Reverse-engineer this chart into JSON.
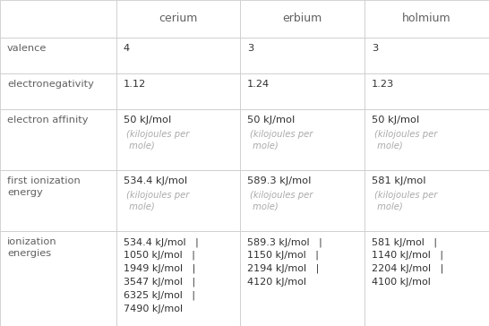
{
  "columns": [
    "",
    "cerium",
    "erbium",
    "holmium"
  ],
  "rows": [
    {
      "label": "valence",
      "cerium": [
        "4",
        ""
      ],
      "erbium": [
        "3",
        ""
      ],
      "holmium": [
        "3",
        ""
      ]
    },
    {
      "label": "electronegativity",
      "cerium": [
        "1.12",
        ""
      ],
      "erbium": [
        "1.24",
        ""
      ],
      "holmium": [
        "1.23",
        ""
      ]
    },
    {
      "label": "electron affinity",
      "cerium": [
        "50 kJ/mol",
        "(kilojoules per\n mole)"
      ],
      "erbium": [
        "50 kJ/mol",
        "(kilojoules per\n mole)"
      ],
      "holmium": [
        "50 kJ/mol",
        "(kilojoules per\n mole)"
      ]
    },
    {
      "label": "first ionization\nenergy",
      "cerium": [
        "534.4 kJ/mol",
        "(kilojoules per\n mole)"
      ],
      "erbium": [
        "589.3 kJ/mol",
        "(kilojoules per\n mole)"
      ],
      "holmium": [
        "581 kJ/mol",
        "(kilojoules per\n mole)"
      ]
    },
    {
      "label": "ionization\nenergies",
      "cerium": [
        "534.4 kJ/mol   |\n1050 kJ/mol   |\n1949 kJ/mol   |\n3547 kJ/mol   |\n6325 kJ/mol   |\n7490 kJ/mol",
        ""
      ],
      "erbium": [
        "589.3 kJ/mol   |\n1150 kJ/mol   |\n2194 kJ/mol   |\n4120 kJ/mol",
        ""
      ],
      "holmium": [
        "581 kJ/mol   |\n1140 kJ/mol   |\n2204 kJ/mol   |\n4100 kJ/mol",
        ""
      ]
    }
  ],
  "header_text_color": "#606060",
  "row_label_color": "#606060",
  "main_value_color": "#303030",
  "sub_value_color": "#aaaaaa",
  "grid_color": "#cccccc",
  "bg_color": "#ffffff",
  "fig_width": 5.46,
  "fig_height": 3.64,
  "dpi": 100
}
